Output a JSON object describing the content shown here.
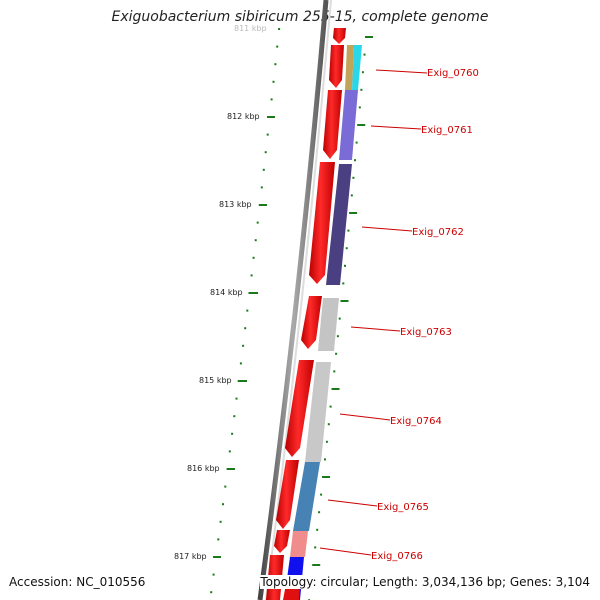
{
  "title": "Exiguobacterium sibiricum 255-15, complete genome",
  "footer": {
    "accession": "Accession: NC_010556",
    "topology": "Topology: circular; Length: 3,034,136 bp; Genes: 3,104"
  },
  "ruler": {
    "partial_top_label": "811 kbp",
    "labels": [
      "812 kbp",
      "813 kbp",
      "814 kbp",
      "815 kbp",
      "816 kbp",
      "817 kbp"
    ]
  },
  "genes": [
    {
      "id": "Exig_0760",
      "color": "#2ad7e8"
    },
    {
      "id": "Exig_0761",
      "color": "#7b6bd6"
    },
    {
      "id": "Exig_0762",
      "color": "#4a3f80"
    },
    {
      "id": "Exig_0763",
      "color": "#c4c4c4"
    },
    {
      "id": "Exig_0764",
      "color": "#c8c8c8"
    },
    {
      "id": "Exig_0765",
      "color": "#4682b4"
    },
    {
      "id": "Exig_0766",
      "color": "#f08c8c"
    }
  ],
  "colors": {
    "cds": "#ee1111",
    "label": "#cc0000",
    "tick": "#1a7a1a",
    "backbone": "#7a7a7a"
  }
}
